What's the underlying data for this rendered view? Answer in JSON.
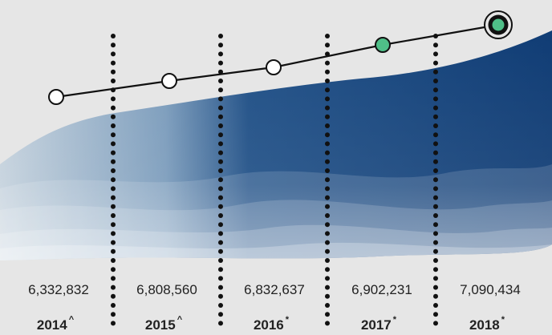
{
  "chart_data": {
    "type": "line",
    "categories": [
      "2014",
      "2015",
      "2016",
      "2017",
      "2018"
    ],
    "year_marks": [
      "^",
      "^",
      "*",
      "*",
      "*"
    ],
    "value_labels": [
      "6,332,832",
      "6,808,560",
      "6,832,637",
      "6,902,231",
      "7,090,434"
    ],
    "values": [
      6332832,
      6808560,
      6832637,
      6902231,
      7090434
    ],
    "marker_styles": [
      "open",
      "open",
      "open",
      "filled",
      "highlighted"
    ],
    "colors": {
      "background": "#e6e6e6",
      "line": "#111111",
      "open_marker_fill": "#ffffff",
      "filled_marker": "#4fbf88",
      "text": "#222222"
    }
  }
}
